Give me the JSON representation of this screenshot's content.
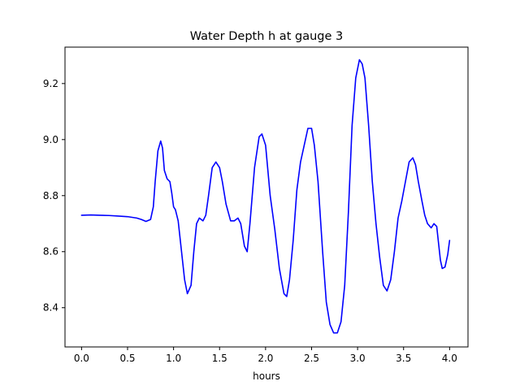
{
  "chart_data": {
    "type": "line",
    "title": "Water Depth h at gauge 3",
    "xlabel": "hours",
    "ylabel": "",
    "xlim": [
      -0.18,
      4.2
    ],
    "ylim": [
      8.26,
      9.33
    ],
    "xticks": [
      0.0,
      0.5,
      1.0,
      1.5,
      2.0,
      2.5,
      3.0,
      3.5,
      4.0
    ],
    "xtick_labels": [
      "0.0",
      "0.5",
      "1.0",
      "1.5",
      "2.0",
      "2.5",
      "3.0",
      "3.5",
      "4.0"
    ],
    "yticks": [
      8.4,
      8.6,
      8.8,
      9.0,
      9.2
    ],
    "ytick_labels": [
      "8.4",
      "8.6",
      "8.8",
      "9.0",
      "9.2"
    ],
    "grid": false,
    "legend": "none",
    "series": [
      {
        "color": "#0000ff",
        "x": [
          0.0,
          0.1,
          0.2,
          0.3,
          0.4,
          0.5,
          0.6,
          0.65,
          0.7,
          0.75,
          0.78,
          0.8,
          0.83,
          0.86,
          0.88,
          0.9,
          0.93,
          0.96,
          0.98,
          1.0,
          1.02,
          1.05,
          1.08,
          1.12,
          1.15,
          1.19,
          1.22,
          1.25,
          1.28,
          1.32,
          1.35,
          1.38,
          1.42,
          1.46,
          1.5,
          1.53,
          1.57,
          1.62,
          1.66,
          1.7,
          1.73,
          1.77,
          1.8,
          1.83,
          1.88,
          1.93,
          1.96,
          2.0,
          2.05,
          2.1,
          2.15,
          2.2,
          2.23,
          2.26,
          2.3,
          2.34,
          2.38,
          2.42,
          2.46,
          2.5,
          2.53,
          2.57,
          2.62,
          2.66,
          2.7,
          2.74,
          2.78,
          2.82,
          2.86,
          2.9,
          2.94,
          2.98,
          3.02,
          3.05,
          3.08,
          3.12,
          3.16,
          3.2,
          3.24,
          3.28,
          3.32,
          3.36,
          3.4,
          3.44,
          3.48,
          3.52,
          3.56,
          3.6,
          3.63,
          3.66,
          3.7,
          3.73,
          3.76,
          3.8,
          3.83,
          3.86,
          3.88,
          3.9,
          3.92,
          3.95,
          3.98,
          4.0
        ],
        "y": [
          8.73,
          8.731,
          8.73,
          8.729,
          8.727,
          8.725,
          8.72,
          8.715,
          8.708,
          8.715,
          8.76,
          8.85,
          8.96,
          8.995,
          8.97,
          8.89,
          8.86,
          8.85,
          8.81,
          8.76,
          8.75,
          8.71,
          8.62,
          8.5,
          8.45,
          8.48,
          8.6,
          8.7,
          8.72,
          8.71,
          8.73,
          8.8,
          8.9,
          8.92,
          8.9,
          8.85,
          8.77,
          8.71,
          8.71,
          8.72,
          8.7,
          8.62,
          8.6,
          8.7,
          8.9,
          9.01,
          9.02,
          8.98,
          8.8,
          8.68,
          8.54,
          8.45,
          8.44,
          8.5,
          8.64,
          8.82,
          8.92,
          8.98,
          9.04,
          9.04,
          8.98,
          8.85,
          8.6,
          8.42,
          8.34,
          8.31,
          8.31,
          8.35,
          8.48,
          8.74,
          9.05,
          9.22,
          9.285,
          9.27,
          9.22,
          9.05,
          8.85,
          8.7,
          8.58,
          8.48,
          8.46,
          8.5,
          8.6,
          8.72,
          8.78,
          8.85,
          8.92,
          8.935,
          8.91,
          8.85,
          8.78,
          8.73,
          8.7,
          8.685,
          8.7,
          8.69,
          8.63,
          8.57,
          8.54,
          8.545,
          8.59,
          8.64
        ]
      }
    ]
  }
}
